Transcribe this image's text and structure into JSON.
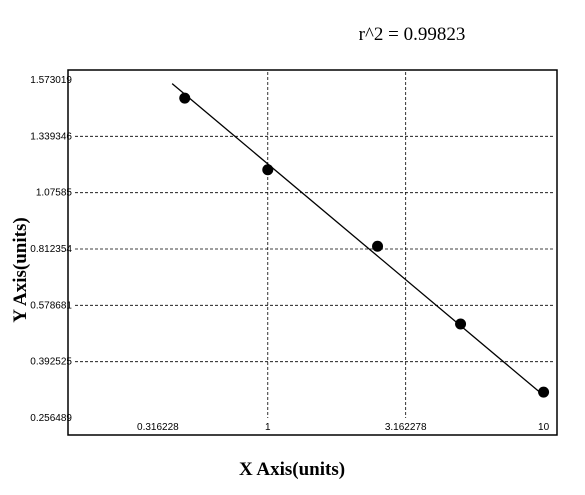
{
  "chart_data": {
    "type": "scatter",
    "title": "r^2  =  0.99823",
    "x_label": "X Axis(units)",
    "y_label": "Y Axis(units)",
    "x_scale": "log",
    "y_scale": "tick-spaced",
    "xlim": [
      0.2,
      11
    ],
    "xticks": [
      0.316228,
      1,
      3.162278,
      10
    ],
    "ylim": [
      0.256489,
      1.573019
    ],
    "yticks": [
      0.256489,
      0.392525,
      0.578681,
      0.812354,
      1.07585,
      1.339346,
      1.573019
    ],
    "grid": true,
    "color": "#000000",
    "points": {
      "x": [
        0.5,
        1,
        2.5,
        5,
        10
      ],
      "y": [
        1.498,
        1.183,
        0.825,
        0.517,
        0.319
      ]
    },
    "fit_line": {
      "x": [
        0.45,
        10
      ],
      "y": [
        1.558,
        0.311
      ]
    }
  }
}
